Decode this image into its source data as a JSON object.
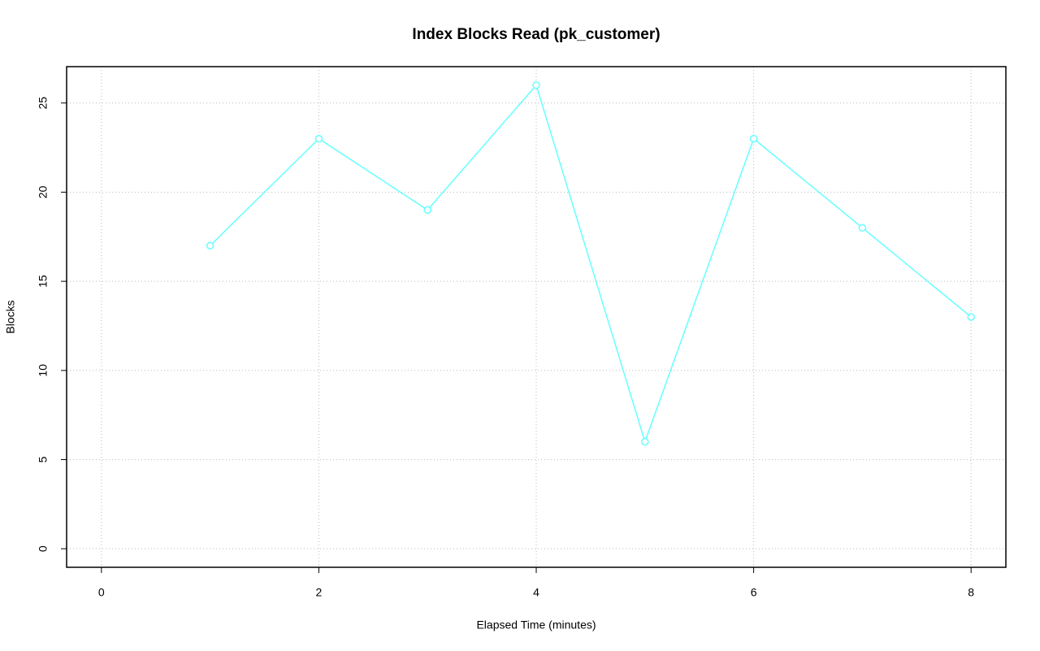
{
  "chart_data": {
    "type": "line",
    "title": "Index Blocks Read (pk_customer)",
    "x_label": "Elapsed Time (minutes)",
    "y_label": "Blocks",
    "x": [
      1,
      2,
      3,
      4,
      5,
      6,
      7,
      8
    ],
    "series": [
      {
        "name": "pk_customer",
        "color": "#66ffff",
        "values": [
          17,
          23,
          19,
          26,
          6,
          23,
          18,
          13
        ]
      }
    ],
    "xlim": [
      -0.32,
      8.32
    ],
    "xticks": [
      0,
      2,
      4,
      6,
      8
    ],
    "ylim": [
      -1.04,
      27.04
    ],
    "yticks": [
      0,
      5,
      10,
      15,
      20,
      25
    ],
    "grid": true,
    "markers": true
  }
}
